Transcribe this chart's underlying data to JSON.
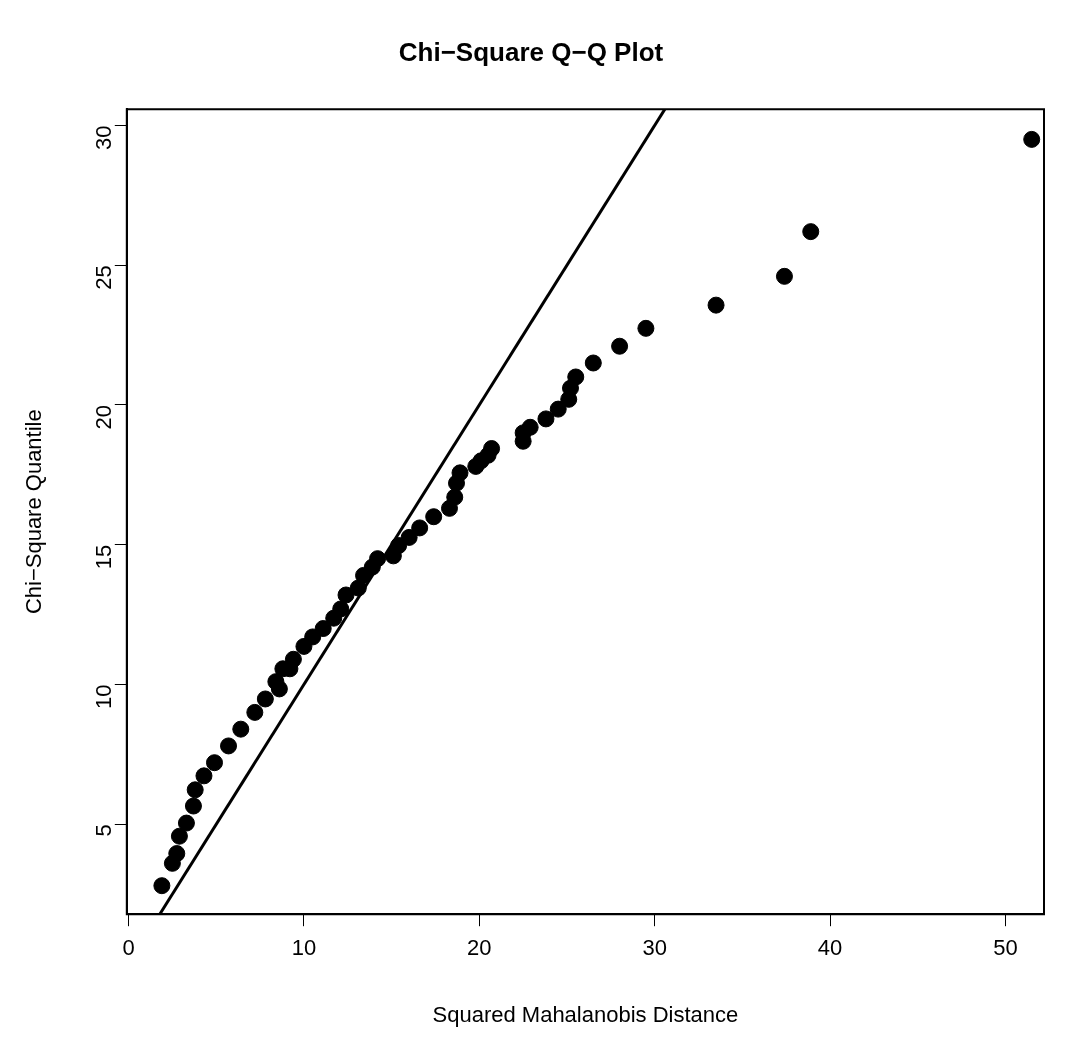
{
  "chart_data": {
    "type": "scatter",
    "title": "Chi−Square Q−Q Plot",
    "xlabel": "Squared Mahalanobis Distance",
    "ylabel": "Chi−Square Quantile",
    "xlim": [
      -0.1,
      52.2
    ],
    "ylim": [
      1.78,
      30.58
    ],
    "xticks": [
      0,
      10,
      20,
      30,
      40,
      50
    ],
    "yticks": [
      5,
      10,
      15,
      20,
      25,
      30
    ],
    "grid": false,
    "legend": false,
    "marker": "circle",
    "series": [
      {
        "type": "scatter",
        "color": "#000000",
        "x": [
          1.9,
          2.5,
          2.75,
          2.9,
          3.3,
          3.7,
          3.8,
          4.3,
          4.9,
          5.7,
          6.4,
          7.2,
          7.8,
          8.4,
          8.6,
          8.8,
          9.2,
          9.4,
          10.0,
          10.5,
          11.1,
          11.7,
          12.1,
          12.4,
          13.1,
          13.4,
          13.9,
          14.2,
          15.1,
          15.4,
          16.0,
          16.6,
          17.4,
          18.3,
          18.6,
          18.7,
          18.9,
          19.8,
          20.1,
          20.5,
          20.7,
          22.5,
          22.5,
          22.9,
          23.8,
          24.5,
          25.1,
          25.2,
          25.5,
          26.5,
          28.0,
          29.5,
          33.5,
          37.4,
          38.9,
          51.5
        ],
        "values": [
          2.8,
          3.6,
          3.95,
          4.57,
          5.04,
          5.65,
          6.23,
          6.73,
          7.2,
          7.8,
          8.4,
          9.0,
          9.48,
          10.1,
          9.84,
          10.56,
          10.56,
          10.9,
          11.36,
          11.7,
          12.0,
          12.37,
          12.7,
          13.2,
          13.45,
          13.9,
          14.2,
          14.5,
          14.6,
          14.97,
          15.26,
          15.6,
          16.0,
          16.3,
          16.7,
          17.2,
          17.57,
          17.8,
          18.0,
          18.2,
          18.44,
          18.7,
          19.0,
          19.2,
          19.5,
          19.85,
          20.2,
          20.6,
          21.0,
          21.5,
          22.1,
          22.74,
          23.57,
          24.6,
          26.2,
          29.5
        ]
      },
      {
        "type": "line",
        "color": "#000000",
        "x": [
          1.78,
          30.58
        ],
        "values": [
          1.78,
          30.58
        ],
        "line_style": "solid",
        "marker": "none"
      }
    ]
  }
}
